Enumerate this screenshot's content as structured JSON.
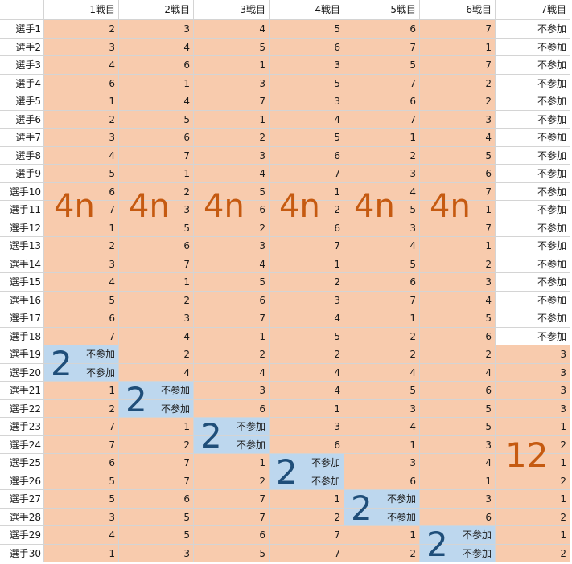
{
  "colors": {
    "group_fill": "#f8cbad",
    "pair_fill": "#bdd7ee",
    "group_label": "#c55a11",
    "pair_label": "#1f4e79"
  },
  "table": {
    "columns": [
      "1戦目",
      "2戦目",
      "3戦目",
      "4戦目",
      "5戦目",
      "6戦目",
      "7戦目"
    ],
    "rows": [
      {
        "label": "選手1",
        "values": [
          "2",
          "3",
          "4",
          "5",
          "6",
          "7",
          "不参加"
        ]
      },
      {
        "label": "選手2",
        "values": [
          "3",
          "4",
          "5",
          "6",
          "7",
          "1",
          "不参加"
        ]
      },
      {
        "label": "選手3",
        "values": [
          "4",
          "6",
          "1",
          "3",
          "5",
          "7",
          "不参加"
        ]
      },
      {
        "label": "選手4",
        "values": [
          "6",
          "1",
          "3",
          "5",
          "7",
          "2",
          "不参加"
        ]
      },
      {
        "label": "選手5",
        "values": [
          "1",
          "4",
          "7",
          "3",
          "6",
          "2",
          "不参加"
        ]
      },
      {
        "label": "選手6",
        "values": [
          "2",
          "5",
          "1",
          "4",
          "7",
          "3",
          "不参加"
        ]
      },
      {
        "label": "選手7",
        "values": [
          "3",
          "6",
          "2",
          "5",
          "1",
          "4",
          "不参加"
        ]
      },
      {
        "label": "選手8",
        "values": [
          "4",
          "7",
          "3",
          "6",
          "2",
          "5",
          "不参加"
        ]
      },
      {
        "label": "選手9",
        "values": [
          "5",
          "1",
          "4",
          "7",
          "3",
          "6",
          "不参加"
        ]
      },
      {
        "label": "選手10",
        "values": [
          "6",
          "2",
          "5",
          "1",
          "4",
          "7",
          "不参加"
        ]
      },
      {
        "label": "選手11",
        "values": [
          "7",
          "3",
          "6",
          "2",
          "5",
          "1",
          "不参加"
        ]
      },
      {
        "label": "選手12",
        "values": [
          "1",
          "5",
          "2",
          "6",
          "3",
          "7",
          "不参加"
        ]
      },
      {
        "label": "選手13",
        "values": [
          "2",
          "6",
          "3",
          "7",
          "4",
          "1",
          "不参加"
        ]
      },
      {
        "label": "選手14",
        "values": [
          "3",
          "7",
          "4",
          "1",
          "5",
          "2",
          "不参加"
        ]
      },
      {
        "label": "選手15",
        "values": [
          "4",
          "1",
          "5",
          "2",
          "6",
          "3",
          "不参加"
        ]
      },
      {
        "label": "選手16",
        "values": [
          "5",
          "2",
          "6",
          "3",
          "7",
          "4",
          "不参加"
        ]
      },
      {
        "label": "選手17",
        "values": [
          "6",
          "3",
          "7",
          "4",
          "1",
          "5",
          "不参加"
        ]
      },
      {
        "label": "選手18",
        "values": [
          "7",
          "4",
          "1",
          "5",
          "2",
          "6",
          "不参加"
        ]
      },
      {
        "label": "選手19",
        "values": [
          "不参加",
          "2",
          "2",
          "2",
          "2",
          "2",
          "3"
        ]
      },
      {
        "label": "選手20",
        "values": [
          "不参加",
          "4",
          "4",
          "4",
          "4",
          "4",
          "3"
        ]
      },
      {
        "label": "選手21",
        "values": [
          "1",
          "不参加",
          "3",
          "4",
          "5",
          "6",
          "3"
        ]
      },
      {
        "label": "選手22",
        "values": [
          "2",
          "不参加",
          "6",
          "1",
          "3",
          "5",
          "3"
        ]
      },
      {
        "label": "選手23",
        "values": [
          "7",
          "1",
          "不参加",
          "3",
          "4",
          "5",
          "1"
        ]
      },
      {
        "label": "選手24",
        "values": [
          "7",
          "2",
          "不参加",
          "6",
          "1",
          "3",
          "2"
        ]
      },
      {
        "label": "選手25",
        "values": [
          "6",
          "7",
          "1",
          "不参加",
          "3",
          "4",
          "1"
        ]
      },
      {
        "label": "選手26",
        "values": [
          "5",
          "7",
          "2",
          "不参加",
          "6",
          "1",
          "2"
        ]
      },
      {
        "label": "選手27",
        "values": [
          "5",
          "6",
          "7",
          "1",
          "不参加",
          "3",
          "1"
        ]
      },
      {
        "label": "選手28",
        "values": [
          "3",
          "5",
          "7",
          "2",
          "不参加",
          "6",
          "2"
        ]
      },
      {
        "label": "選手29",
        "values": [
          "4",
          "5",
          "6",
          "7",
          "1",
          "不参加",
          "1"
        ]
      },
      {
        "label": "選手30",
        "values": [
          "1",
          "3",
          "5",
          "7",
          "2",
          "不参加",
          "2"
        ]
      }
    ]
  },
  "overlays": {
    "group_label": "4n",
    "pair_label": "2",
    "last_group_label": "12"
  }
}
